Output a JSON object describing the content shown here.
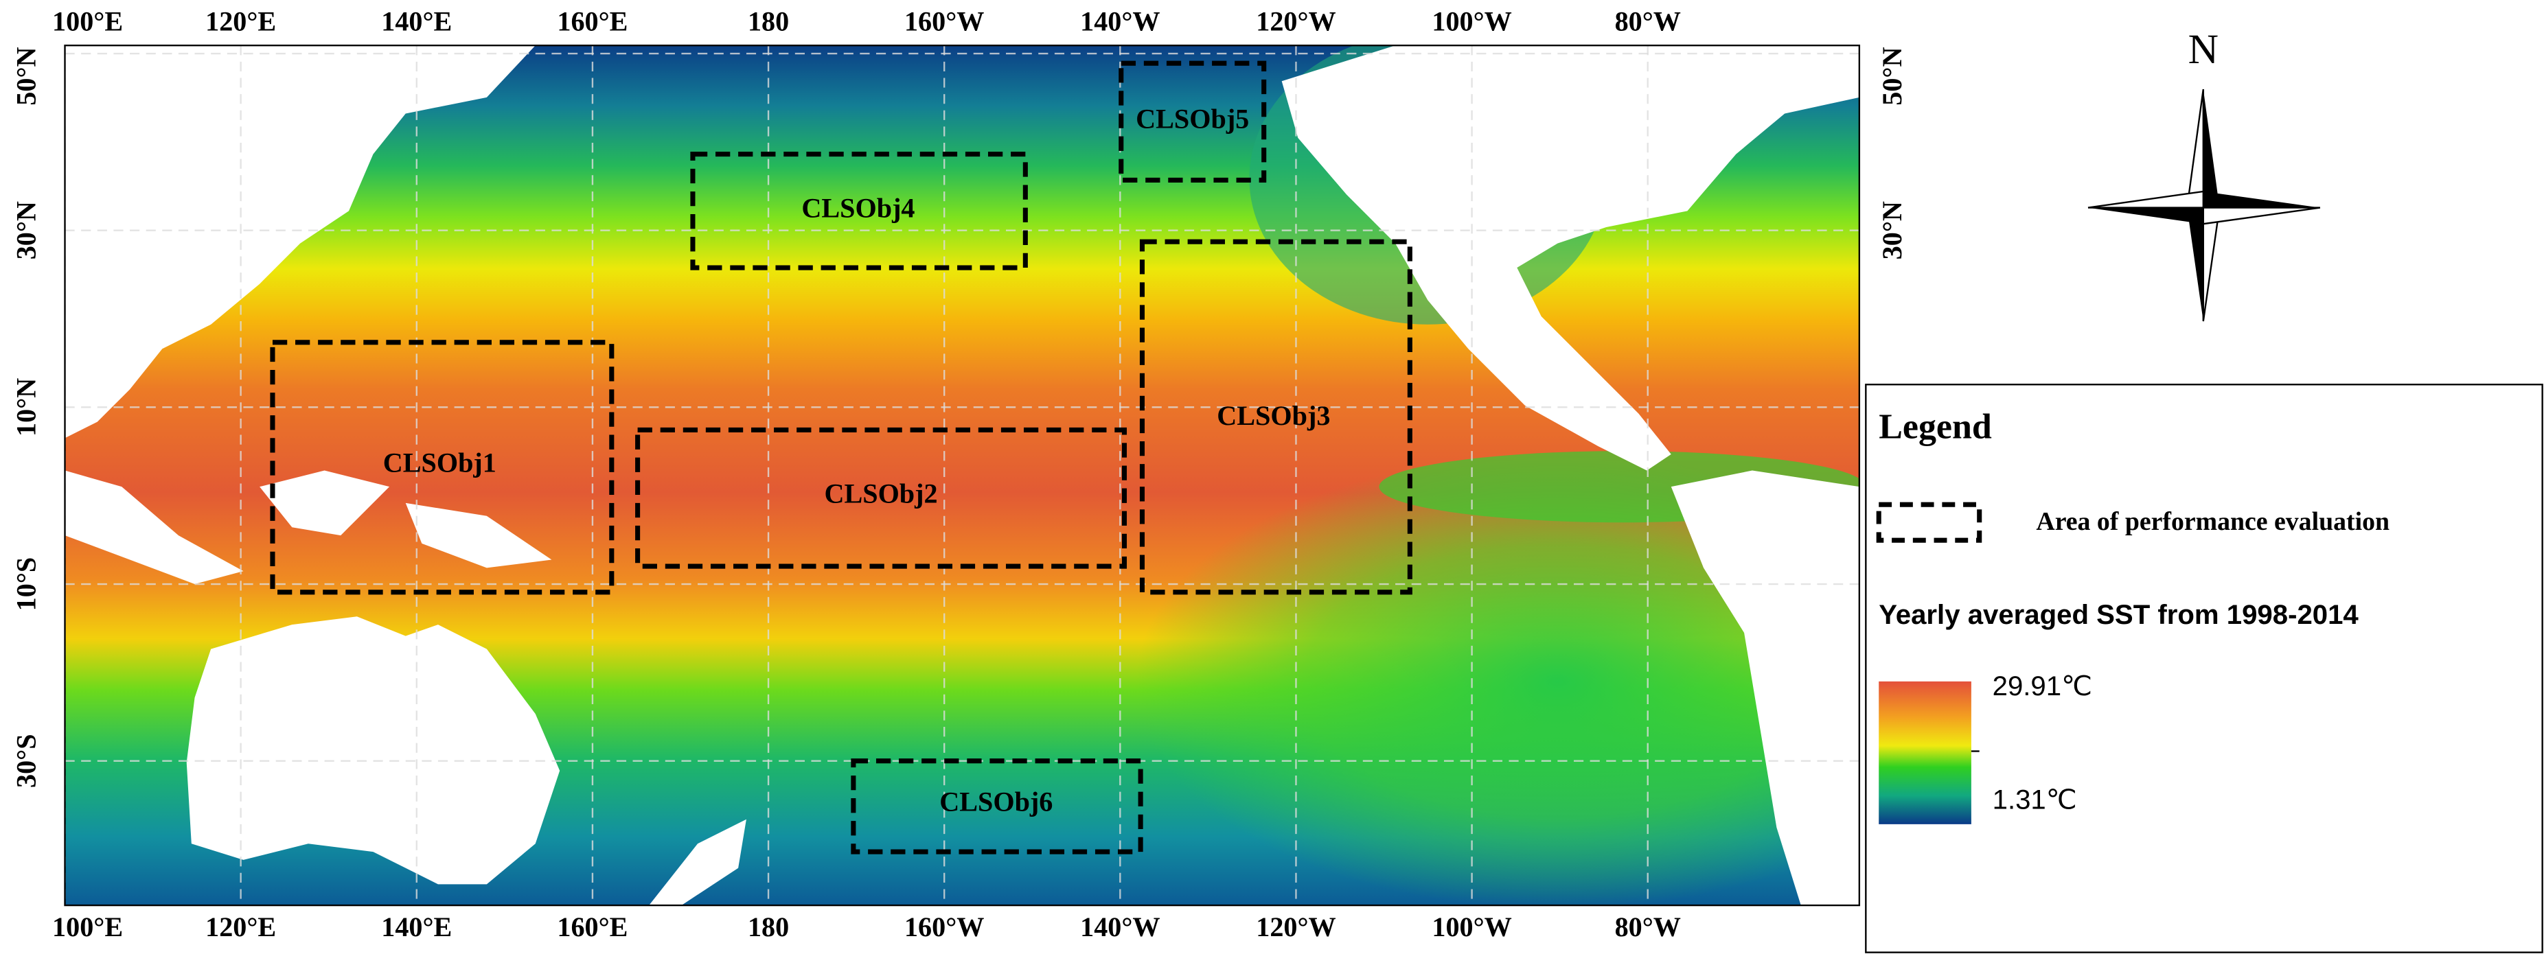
{
  "map": {
    "top_axis_labels": [
      "100°E",
      "120°E",
      "140°E",
      "160°E",
      "180",
      "160°W",
      "140°W",
      "120°W",
      "100°W",
      "80°W"
    ],
    "bottom_axis_labels": [
      "100°E",
      "120°E",
      "140°E",
      "160°E",
      "180",
      "160°W",
      "140°W",
      "120°W",
      "100°W",
      "80°W"
    ],
    "left_axis_labels": [
      "50°N",
      "30°N",
      "10°N",
      "10°S",
      "30°S"
    ],
    "right_axis_labels": [
      "50°N",
      "30°N"
    ],
    "regions": [
      {
        "label": "CLSObj1"
      },
      {
        "label": "CLSObj2"
      },
      {
        "label": "CLSObj3"
      },
      {
        "label": "CLSObj4"
      },
      {
        "label": "CLSObj5"
      },
      {
        "label": "CLSObj6"
      }
    ],
    "compass": "N",
    "legend": {
      "title": "Legend",
      "entry": "Area of performance evaluation",
      "colorbar_title": "Yearly averaged SST from 1998-2014",
      "max_label": "29.91℃",
      "min_label": "1.31℃"
    }
  }
}
